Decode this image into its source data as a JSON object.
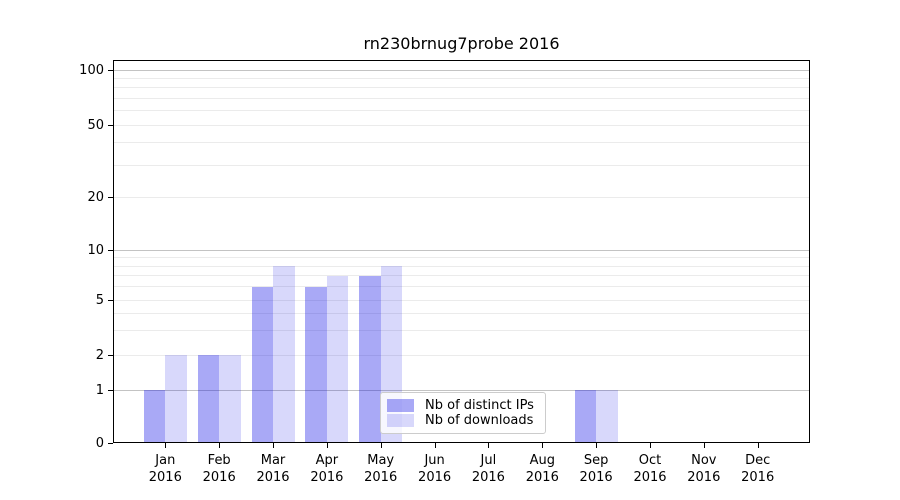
{
  "figure": {
    "title": "rn230brnug7probe 2016",
    "background": "#ffffff"
  },
  "chart_data": {
    "type": "bar",
    "title": "rn230brnug7probe 2016",
    "x_axis": {
      "months": [
        "Jan",
        "Feb",
        "Mar",
        "Apr",
        "May",
        "Jun",
        "Jul",
        "Aug",
        "Sep",
        "Oct",
        "Nov",
        "Dec"
      ],
      "year": "2016"
    },
    "series": [
      {
        "name": "Nb of distinct IPs",
        "color": "rgba(10,10,230,0.35)",
        "values": [
          1,
          2,
          6,
          6,
          7,
          0,
          0,
          0,
          1,
          0,
          0,
          0
        ]
      },
      {
        "name": "Nb of downloads",
        "color": "rgba(10,10,230,0.16)",
        "values": [
          2,
          2,
          8,
          7,
          8,
          0,
          0,
          0,
          1,
          0,
          0,
          0
        ]
      }
    ],
    "y_axis": {
      "scale": "symlog",
      "tick_values": [
        100,
        50,
        20,
        10,
        5,
        2,
        1,
        0
      ],
      "tick_labels": [
        "100",
        "50",
        "20",
        "10",
        "5",
        "2",
        "1",
        "0"
      ],
      "major_grid_values": [
        1,
        10,
        100
      ],
      "minor_grid_values": [
        2,
        3,
        4,
        5,
        6,
        7,
        8,
        9,
        20,
        30,
        40,
        50,
        60,
        70,
        80,
        90
      ],
      "range": [
        0,
        100
      ]
    },
    "legend": {
      "position": "lower center",
      "entries": [
        "Nb of distinct IPs",
        "Nb of downloads"
      ]
    },
    "grid": true
  },
  "colors": {
    "bar_distinct_ips": "rgba(10,10,230,0.35)",
    "bar_downloads": "rgba(10,10,230,0.16)",
    "grid_major": "#c3c3c3",
    "grid_minor": "#ebebeb",
    "spine": "#000000",
    "legend_border": "#cccccc"
  }
}
